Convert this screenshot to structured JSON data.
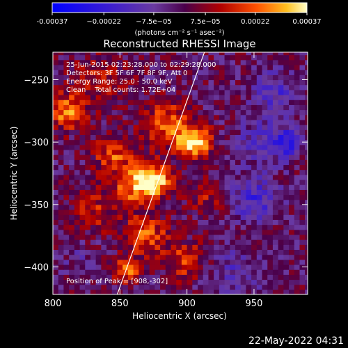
{
  "chart_data": {
    "type": "heatmap",
    "title": "Reconstructed RHESSI Image",
    "xlabel": "Heliocentric X (arcsec)",
    "ylabel": "Heliocentric Y (arcsec)",
    "xlim": [
      800,
      990
    ],
    "ylim": [
      -422,
      -228
    ],
    "xticks": [
      800,
      850,
      900,
      950
    ],
    "yticks": [
      -250,
      -300,
      -350,
      -400
    ],
    "xtick_labels": [
      "800",
      "850",
      "900",
      "950"
    ],
    "ytick_labels": [
      "−250",
      "−300",
      "−350",
      "−400"
    ],
    "colorbar": {
      "range": [
        -0.00037,
        0.00037
      ],
      "ticks": [
        -0.00037,
        -0.00022,
        -7.5e-05,
        7.5e-05,
        0.00022,
        0.00037
      ],
      "tick_labels": [
        "-0.00037",
        "−0.00022",
        "−7.5e−05",
        "7.5e−05",
        "0.00022",
        "0.00037"
      ],
      "unit_label": "(photons cm⁻² s⁻¹ asec⁻²)"
    },
    "annotations": [
      "25-Jun-2015 02:23:28.000 to 02:29:28.000",
      "Detectors: 3F 5F 6F 7F 8F 9F, Att 0",
      "Energy Range: 25.0 - 50.0 keV",
      "Clean    Total counts: 1.72E+04",
      "Position of Peak = [908,-302]"
    ],
    "peak": {
      "x": 908,
      "y": -302
    },
    "limb_line": {
      "x": [
        848,
        913
      ],
      "y": [
        -422,
        -228
      ]
    },
    "hotspots": [
      {
        "x": 905,
        "y": -300,
        "amp": 1.0,
        "s": 9
      },
      {
        "x": 885,
        "y": -285,
        "amp": 0.6,
        "s": 12
      },
      {
        "x": 875,
        "y": -330,
        "amp": 0.9,
        "s": 9
      },
      {
        "x": 860,
        "y": -335,
        "amp": 0.6,
        "s": 12
      },
      {
        "x": 845,
        "y": -310,
        "amp": 0.5,
        "s": 10
      },
      {
        "x": 810,
        "y": -275,
        "amp": 0.7,
        "s": 10
      },
      {
        "x": 835,
        "y": -250,
        "amp": 0.35,
        "s": 14
      },
      {
        "x": 870,
        "y": -375,
        "amp": 0.55,
        "s": 12
      },
      {
        "x": 900,
        "y": -395,
        "amp": 0.5,
        "s": 10
      },
      {
        "x": 855,
        "y": -403,
        "amp": 0.6,
        "s": 7
      },
      {
        "x": 830,
        "y": -355,
        "amp": 0.35,
        "s": 12
      },
      {
        "x": 915,
        "y": -345,
        "amp": 0.3,
        "s": 10
      },
      {
        "x": 950,
        "y": -345,
        "amp": -0.5,
        "s": 12
      },
      {
        "x": 955,
        "y": -300,
        "amp": -0.35,
        "s": 12
      },
      {
        "x": 975,
        "y": -300,
        "amp": -0.6,
        "s": 8
      },
      {
        "x": 935,
        "y": -405,
        "amp": -0.3,
        "s": 14
      },
      {
        "x": 965,
        "y": -260,
        "amp": -0.4,
        "s": 12
      },
      {
        "x": 820,
        "y": -395,
        "amp": -0.15,
        "s": 10
      }
    ]
  },
  "footer": {
    "timestamp": "22-May-2022 04:31"
  }
}
